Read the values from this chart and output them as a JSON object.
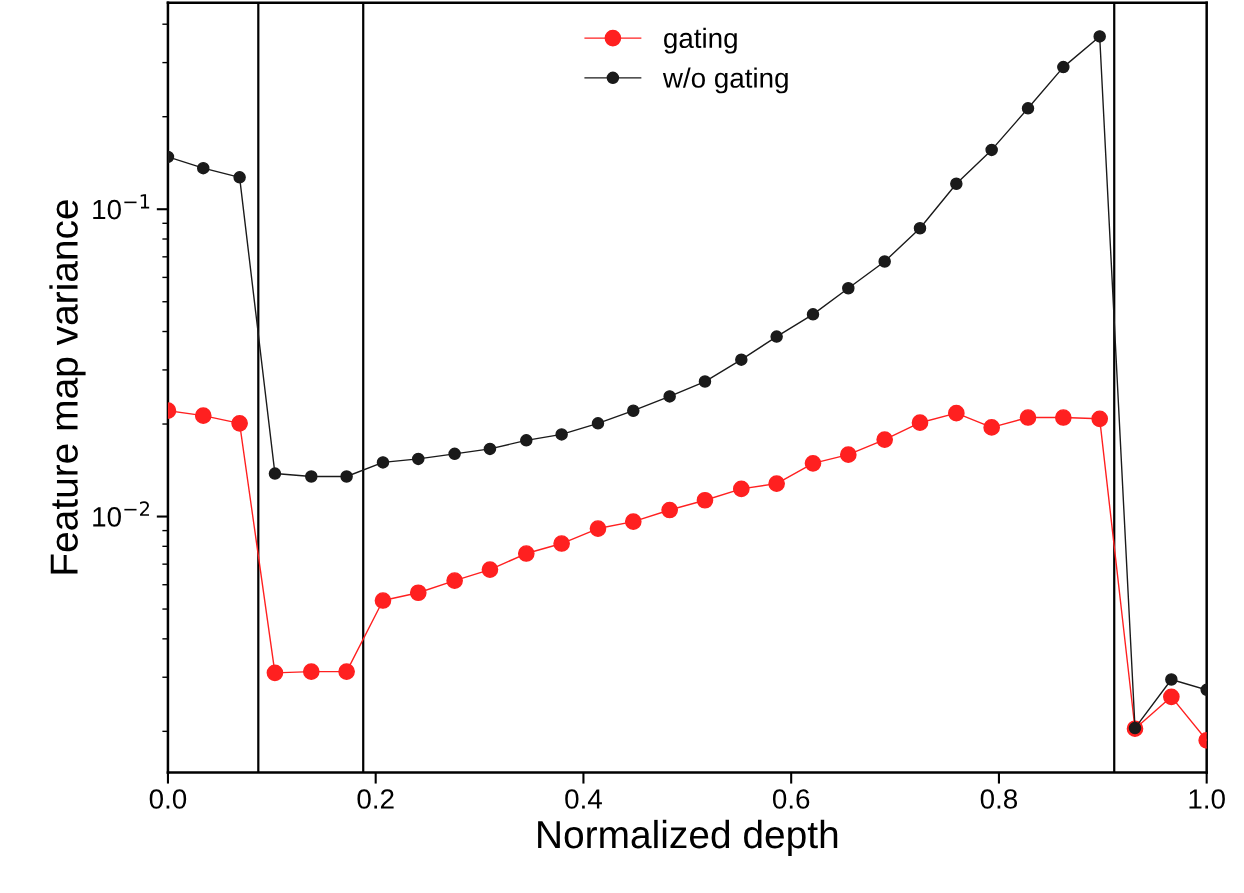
{
  "chart_data": {
    "type": "line",
    "xlabel": "Normalized depth",
    "ylabel": "Feature map variance",
    "x": [
      0,
      0.034,
      0.069,
      0.103,
      0.138,
      0.172,
      0.207,
      0.241,
      0.276,
      0.31,
      0.345,
      0.379,
      0.414,
      0.448,
      0.483,
      0.517,
      0.552,
      0.586,
      0.621,
      0.655,
      0.69,
      0.724,
      0.759,
      0.793,
      0.828,
      0.862,
      0.897,
      0.931,
      0.966,
      1.0
    ],
    "series": [
      {
        "name": "gating",
        "color": "#ff2020",
        "values": [
          0.0221,
          0.0213,
          0.0201,
          0.0031,
          0.00313,
          0.00313,
          0.00533,
          0.00565,
          0.00619,
          0.00672,
          0.00758,
          0.00817,
          0.00914,
          0.00963,
          0.0105,
          0.0113,
          0.0123,
          0.0128,
          0.0149,
          0.0159,
          0.0178,
          0.0202,
          0.0217,
          0.0195,
          0.021,
          0.021,
          0.0208,
          0.00204,
          0.00259,
          0.00187
        ]
      },
      {
        "name": "w/o gating",
        "color": "#1a1a1a",
        "values": [
          0.148,
          0.136,
          0.127,
          0.0138,
          0.0135,
          0.0135,
          0.015,
          0.0154,
          0.016,
          0.0166,
          0.0177,
          0.0185,
          0.0201,
          0.0221,
          0.0246,
          0.0275,
          0.0324,
          0.0385,
          0.0455,
          0.0553,
          0.0676,
          0.0867,
          0.121,
          0.156,
          0.213,
          0.29,
          0.365,
          0.00205,
          0.00295,
          0.00273
        ]
      }
    ],
    "log": "y",
    "xlim": [
      0,
      1
    ],
    "xticks": [
      {
        "value": 0,
        "label": "0.0"
      },
      0.2,
      0.4,
      0.6,
      0.8,
      {
        "value": 1,
        "label": "1.0"
      }
    ],
    "ylim": [
      0.00147,
      0.47
    ],
    "yticks": [
      {
        "value": 0.01,
        "label": "10$^{−2}$"
      },
      {
        "value": 0.1,
        "label": "10$^{−1}$"
      }
    ],
    "ref_lines": [
      {
        "axis": "x",
        "value": 0.087,
        "color": "#000000"
      },
      {
        "axis": "x",
        "value": 0.188,
        "color": "#000000"
      },
      {
        "axis": "x",
        "value": 0.911,
        "color": "#000000"
      }
    ],
    "marker": "circle",
    "line_style": "solid",
    "legend": "top",
    "grid": false
  }
}
